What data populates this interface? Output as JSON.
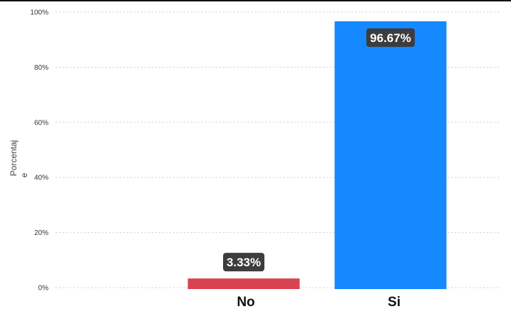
{
  "chart_data": {
    "type": "bar",
    "categories": [
      "No",
      "Si"
    ],
    "values": [
      3.33,
      96.67
    ],
    "data_labels": [
      "3.33%",
      "96.67%"
    ],
    "colors": [
      "#d9434f",
      "#1589ff"
    ],
    "label_box_color": "#3d3d3d",
    "ylabel_lines": [
      "Porcentaj",
      "e"
    ],
    "ylim": [
      0,
      100
    ],
    "yticks": [
      0,
      20,
      40,
      60,
      80,
      100
    ],
    "ytick_labels": [
      "0%",
      "20%",
      "40%",
      "60%",
      "80%",
      "100%"
    ],
    "grid": true,
    "legend": "none"
  }
}
